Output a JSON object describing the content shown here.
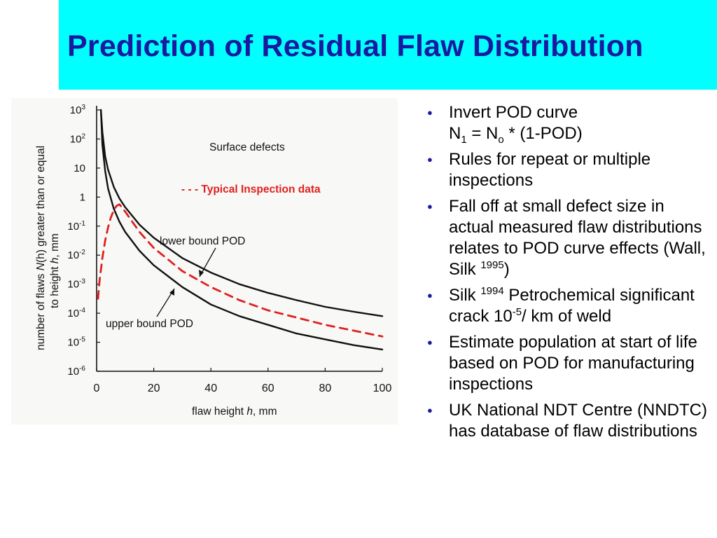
{
  "slide": {
    "title": "Prediction of Residual Flaw Distribution",
    "colors": {
      "title_band": "#00ffff",
      "title_text": "#1a1aa0",
      "bullet": "#1a1aa0",
      "inspection_curve": "#e02020"
    }
  },
  "bullets": [
    {
      "lead": "Invert POD curve",
      "eq_n1": "N",
      "eq_n1_sub": "1",
      "eq_mid": " = N",
      "eq_no_sub": "o",
      "eq_tail": " * (1-POD)"
    },
    {
      "text": "Rules for repeat or multiple inspections"
    },
    {
      "text_before": "Fall off at small defect size in actual measured flaw distributions relates to POD curve effects (Wall, Silk ",
      "sup": "1995",
      "text_after": ")"
    },
    {
      "text_before": "Silk ",
      "sup1": "1994",
      "text_mid": " Petrochemical significant crack 10",
      "sup2": "-5",
      "text_after": "/ km of weld"
    },
    {
      "text": "Estimate population at start of life based on POD for manufacturing inspections"
    },
    {
      "text": "UK National NDT Centre (NNDTC) has database of flaw distributions"
    }
  ],
  "chart_data": {
    "type": "line",
    "xlabel_pre": "flaw height ",
    "xlabel_var": "h",
    "xlabel_post": ", mm",
    "ylabel_line1_pre": "number of flaws ",
    "ylabel_line1_var": "N",
    "ylabel_line1_paren": "(h)",
    "ylabel_line1_post": " greater than or equal",
    "ylabel_line2_pre": "to height ",
    "ylabel_line2_var": "h",
    "ylabel_line2_post": ", mm",
    "xlim": [
      0,
      100
    ],
    "ylim_log10": [
      -6,
      3
    ],
    "y_scale": "log",
    "x_ticks": [
      "0",
      "20",
      "40",
      "60",
      "80",
      "100"
    ],
    "y_tick_labels": [
      {
        "base": "10",
        "exp": "-6",
        "value": -6
      },
      {
        "base": "10",
        "exp": "-5",
        "value": -5
      },
      {
        "base": "10",
        "exp": "-4",
        "value": -4
      },
      {
        "base": "10",
        "exp": "-3",
        "value": -3
      },
      {
        "base": "10",
        "exp": "-2",
        "value": -2
      },
      {
        "base": "10",
        "exp": "-1",
        "value": -1
      },
      {
        "base": "1",
        "exp": "",
        "value": 0
      },
      {
        "base": "10",
        "exp": "",
        "value": 1
      },
      {
        "base": "10",
        "exp": "2",
        "value": 2
      },
      {
        "base": "10",
        "exp": "3",
        "value": 3
      }
    ],
    "annotations": {
      "surface": "Surface defects",
      "inspection": "- - - Typical Inspection data",
      "lower": "lower bound POD",
      "upper": "upper bound POD"
    },
    "series": [
      {
        "key": "lower",
        "style": "solid",
        "x": [
          1.5,
          2,
          3,
          4,
          6,
          8,
          10,
          15,
          20,
          30,
          40,
          50,
          60,
          70,
          80,
          90,
          100
        ],
        "y_log10": [
          3.0,
          2.25,
          1.4,
          0.95,
          0.35,
          -0.05,
          -0.35,
          -0.95,
          -1.4,
          -2.1,
          -2.6,
          -3.0,
          -3.3,
          -3.55,
          -3.78,
          -3.95,
          -4.1
        ]
      },
      {
        "key": "upper",
        "style": "solid",
        "x": [
          1.5,
          2,
          3,
          4,
          6,
          8,
          10,
          15,
          20,
          30,
          40,
          50,
          60,
          70,
          80,
          90,
          100
        ],
        "y_log10": [
          3.0,
          1.8,
          0.9,
          0.3,
          -0.4,
          -0.85,
          -1.2,
          -1.85,
          -2.35,
          -3.1,
          -3.7,
          -4.1,
          -4.4,
          -4.7,
          -4.9,
          -5.1,
          -5.25
        ]
      },
      {
        "key": "inspection",
        "style": "dashed",
        "x": [
          0.5,
          1,
          2,
          3,
          4,
          5,
          6,
          7,
          8,
          10,
          15,
          20,
          30,
          40,
          50,
          60,
          70,
          80,
          90,
          100
        ],
        "y_log10": [
          -3.5,
          -2.9,
          -2.1,
          -1.5,
          -1.05,
          -0.7,
          -0.45,
          -0.3,
          -0.25,
          -0.5,
          -1.2,
          -1.75,
          -2.55,
          -3.1,
          -3.55,
          -3.9,
          -4.15,
          -4.4,
          -4.6,
          -4.8
        ]
      }
    ]
  }
}
